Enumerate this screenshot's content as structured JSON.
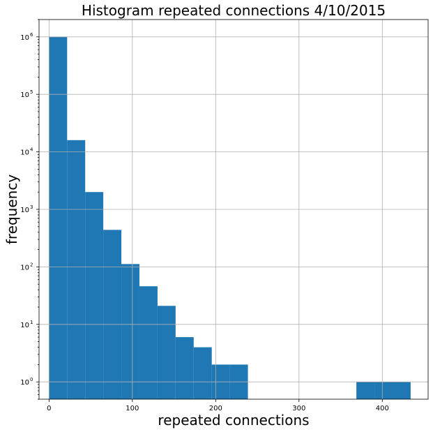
{
  "chart_data": {
    "type": "bar",
    "title": "Histogram repeated connections 4/10/2015",
    "xlabel": "repeated connections",
    "ylabel": "frequency",
    "yscale": "log",
    "xlim": [
      -12,
      455
    ],
    "ylim": [
      0.5,
      2000000
    ],
    "grid": true,
    "bar_color": "#1f77b4",
    "x_ticks": [
      {
        "value": 0,
        "label": "0"
      },
      {
        "value": 100,
        "label": "100"
      },
      {
        "value": 200,
        "label": "200"
      },
      {
        "value": 300,
        "label": "300"
      },
      {
        "value": 400,
        "label": "400"
      }
    ],
    "y_ticks": [
      {
        "value": 1,
        "base": "10",
        "exp": "0"
      },
      {
        "value": 10,
        "base": "10",
        "exp": "1"
      },
      {
        "value": 100,
        "base": "10",
        "exp": "2"
      },
      {
        "value": 1000,
        "base": "10",
        "exp": "3"
      },
      {
        "value": 10000,
        "base": "10",
        "exp": "4"
      },
      {
        "value": 100000,
        "base": "10",
        "exp": "5"
      },
      {
        "value": 1000000,
        "base": "10",
        "exp": "6"
      }
    ],
    "bins": [
      {
        "start": 0,
        "end": 21.7,
        "count": 1000000
      },
      {
        "start": 21.7,
        "end": 43.4,
        "count": 16000
      },
      {
        "start": 43.4,
        "end": 65.1,
        "count": 2000
      },
      {
        "start": 65.1,
        "end": 86.8,
        "count": 440
      },
      {
        "start": 86.8,
        "end": 108.5,
        "count": 112
      },
      {
        "start": 108.5,
        "end": 130.2,
        "count": 46
      },
      {
        "start": 130.2,
        "end": 151.9,
        "count": 21
      },
      {
        "start": 151.9,
        "end": 173.6,
        "count": 6
      },
      {
        "start": 173.6,
        "end": 195.3,
        "count": 4
      },
      {
        "start": 195.3,
        "end": 217.0,
        "count": 2
      },
      {
        "start": 217.0,
        "end": 238.7,
        "count": 2
      },
      {
        "start": 368.9,
        "end": 390.6,
        "count": 1
      },
      {
        "start": 390.6,
        "end": 412.3,
        "count": 1
      },
      {
        "start": 412.3,
        "end": 434.0,
        "count": 1
      }
    ]
  }
}
